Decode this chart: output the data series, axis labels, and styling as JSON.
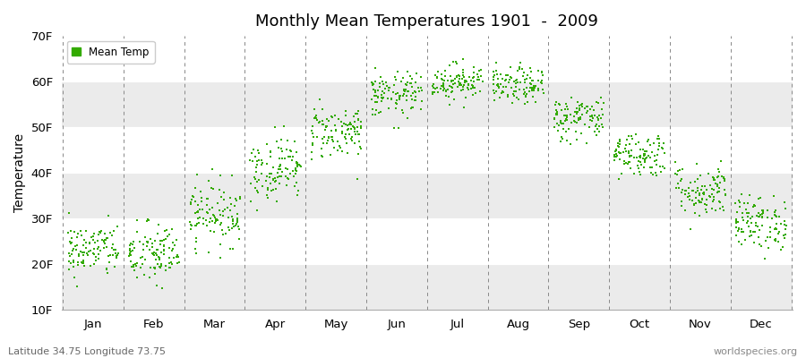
{
  "title": "Monthly Mean Temperatures 1901  -  2009",
  "ylabel": "Temperature",
  "bottom_left_label": "Latitude 34.75 Longitude 73.75",
  "bottom_right_label": "worldspecies.org",
  "legend_label": "Mean Temp",
  "marker_color": "#33aa00",
  "background_color": "#ffffff",
  "band_color": "#ebebeb",
  "ylim": [
    10,
    70
  ],
  "ytick_labels": [
    "10F",
    "20F",
    "30F",
    "40F",
    "50F",
    "60F",
    "70F"
  ],
  "ytick_values": [
    10,
    20,
    30,
    40,
    50,
    60,
    70
  ],
  "month_names": [
    "Jan",
    "Feb",
    "Mar",
    "Apr",
    "May",
    "Jun",
    "Jul",
    "Aug",
    "Sep",
    "Oct",
    "Nov",
    "Dec"
  ],
  "monthly_mean_F": [
    23,
    22,
    31,
    41,
    49,
    57,
    60,
    59,
    52,
    44,
    36,
    29
  ],
  "monthly_std_F": [
    3.0,
    3.5,
    3.5,
    3.5,
    3.0,
    2.5,
    2.0,
    2.0,
    2.5,
    2.5,
    3.0,
    3.0
  ],
  "n_years": 109,
  "seed": 42
}
